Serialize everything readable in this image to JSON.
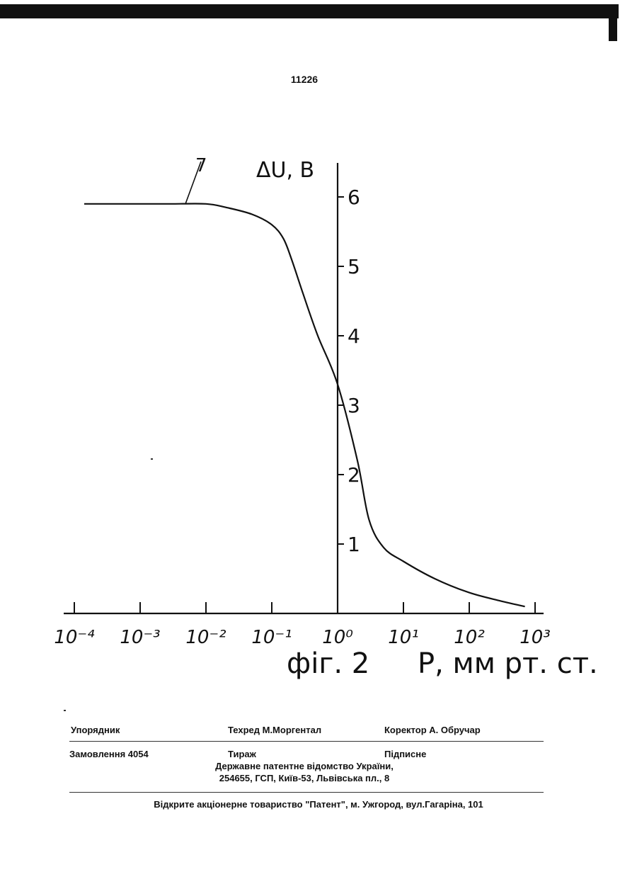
{
  "page_number": "11226",
  "chart_data": {
    "type": "line",
    "title": "",
    "figure_label": "фіг. 2",
    "xlabel": "P, мм рт. ст.",
    "ylabel": "ΔU, В",
    "x_scale": "log",
    "xlim": [
      0.0001,
      1000
    ],
    "ylim": [
      0,
      6
    ],
    "x_tick_labels": [
      "10⁻⁴",
      "10⁻³",
      "10⁻²",
      "10⁻¹",
      "10⁰",
      "10¹",
      "10²",
      "10³"
    ],
    "y_tick_labels": [
      "1",
      "2",
      "3",
      "4",
      "5",
      "6"
    ],
    "grid": false,
    "legend": "none",
    "curve_label": "7",
    "series": [
      {
        "name": "7",
        "x": [
          0.0001,
          0.0003,
          0.001,
          0.003,
          0.01,
          0.02,
          0.05,
          0.1,
          0.15,
          0.2,
          0.3,
          0.5,
          1,
          2,
          3,
          5,
          10,
          30,
          100,
          300,
          700
        ],
        "y": [
          5.9,
          5.9,
          5.9,
          5.9,
          5.9,
          5.85,
          5.75,
          5.6,
          5.4,
          5.1,
          4.6,
          4.0,
          3.3,
          2.2,
          1.35,
          0.95,
          0.75,
          0.5,
          0.3,
          0.18,
          0.1
        ]
      }
    ]
  },
  "imprint": {
    "compiler": "Упорядник",
    "tech_editor": "Техред М.Моргентал",
    "corrector": "Коректор А. Обручар",
    "order": "Замовлення  4054",
    "circulation": "Тираж",
    "subscription": "Підписне",
    "office": "Державне патентне відомство України,",
    "address": "254655, ГСП, Київ-53, Львівська пл., 8",
    "printer": "Відкрите акціонерне товариство \"Патент\", м. Ужгород, вул.Гагаріна, 101"
  }
}
